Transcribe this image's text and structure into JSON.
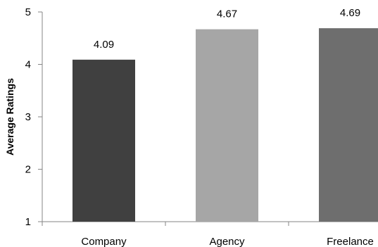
{
  "chart_data": {
    "type": "bar",
    "categories": [
      "Company",
      "Agency",
      "Freelance"
    ],
    "values": [
      4.09,
      4.67,
      4.69
    ],
    "value_labels": [
      "4.09",
      "4.67",
      "4.69"
    ],
    "bar_colors": [
      "#404040",
      "#a6a6a6",
      "#6e6e6e"
    ],
    "title": "",
    "xlabel": "",
    "ylabel": "Average Ratings",
    "ylim": [
      1,
      5
    ],
    "yticks": [
      1,
      2,
      3,
      4,
      5
    ],
    "ytick_labels": [
      "1",
      "2",
      "3",
      "4",
      "5"
    ],
    "grid": false,
    "legend": "none"
  }
}
